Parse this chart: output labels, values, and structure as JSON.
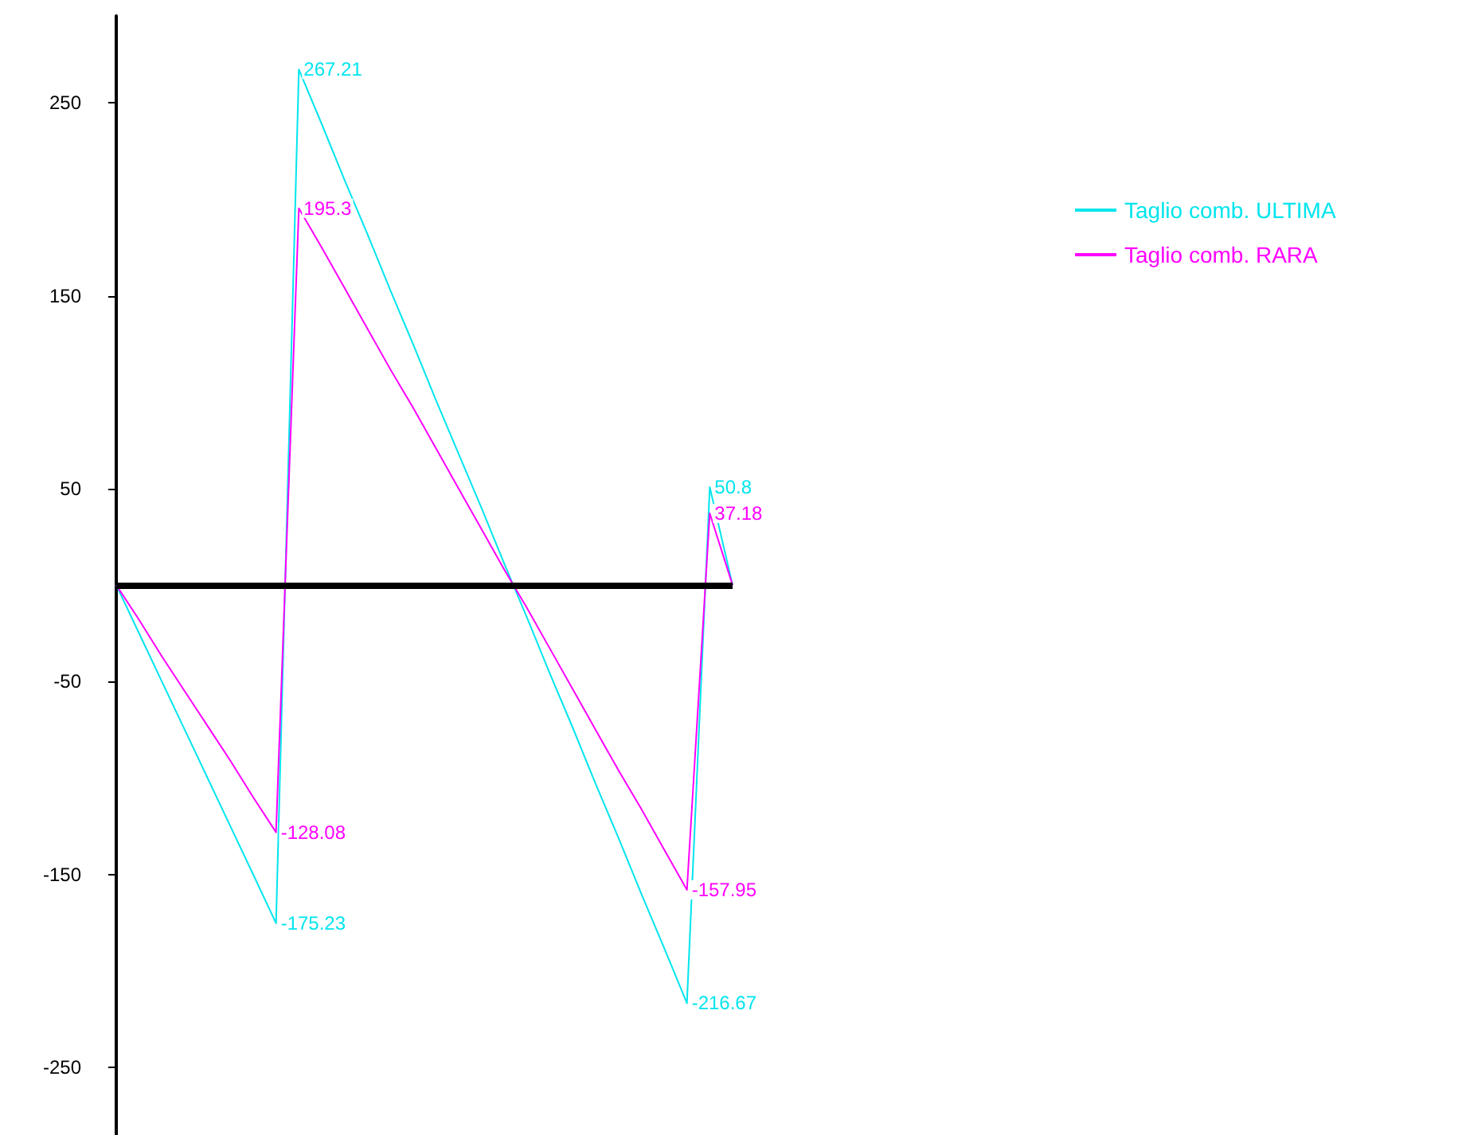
{
  "chart_data": {
    "type": "line",
    "categories": [
      null,
      null,
      null,
      null,
      null,
      null,
      null,
      null,
      null,
      null,
      null,
      null,
      null,
      null,
      null,
      null,
      null,
      null,
      null,
      null,
      null,
      null,
      null,
      null,
      null,
      null,
      null,
      null
    ],
    "ylim": [
      -285,
      295
    ],
    "yticks": [
      250,
      150,
      50,
      -50,
      -150,
      -250
    ],
    "tick_labels": "y",
    "grid": false,
    "legend": "top right",
    "line_style": "solid",
    "marker": "none",
    "series": [
      {
        "name": "Taglio comb. ULTIMA",
        "color": "#00e5ee",
        "values": [
          0,
          -25,
          -50,
          -75,
          -100,
          -125,
          -150,
          -175.23,
          267.21,
          239,
          210,
          182,
          153,
          125,
          96,
          68,
          40,
          11,
          -17,
          -46,
          -74,
          -103,
          -131,
          -160,
          -188,
          -216.67,
          50.8,
          0
        ],
        "value_labels": [
          null,
          null,
          null,
          null,
          null,
          null,
          null,
          "-175.23",
          "267.21",
          null,
          null,
          null,
          null,
          null,
          null,
          null,
          null,
          null,
          null,
          null,
          null,
          null,
          null,
          null,
          null,
          "-216.67",
          "50.8",
          null
        ]
      },
      {
        "name": "Taglio comb. RARA",
        "color": "#ff00ff",
        "values": [
          0,
          -18,
          -37,
          -55,
          -73,
          -91,
          -110,
          -128.08,
          195.3,
          175,
          154,
          133,
          112,
          92,
          71,
          50,
          29,
          8,
          -12,
          -33,
          -54,
          -75,
          -96,
          -116,
          -137,
          -157.95,
          37.18,
          0
        ],
        "value_labels": [
          null,
          null,
          null,
          null,
          null,
          null,
          null,
          "-128.08",
          "195.3",
          null,
          null,
          null,
          null,
          null,
          null,
          null,
          null,
          null,
          null,
          null,
          null,
          null,
          null,
          null,
          null,
          "-157.95",
          "37.18",
          null
        ]
      }
    ],
    "ref_lines": [
      {
        "axis": "y",
        "value": 0,
        "color": "#000000"
      }
    ]
  }
}
